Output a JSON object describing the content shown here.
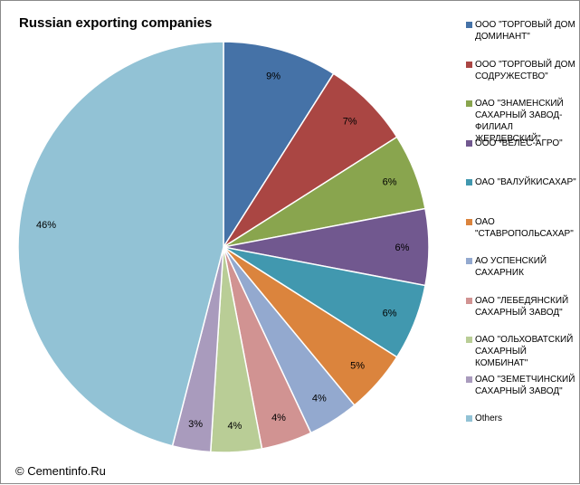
{
  "chart_data": {
    "type": "pie",
    "title": "Russian exporting companies",
    "source": "© Cementinfo.Ru",
    "legend_position": "right",
    "slices": [
      {
        "name": "ООО \"ТОРГОВЫЙ ДОМ ДОМИНАНТ\"",
        "value": 9,
        "label": "9%",
        "color": "#4572A7"
      },
      {
        "name": "ООО \"ТОРГОВЫЙ ДОМ СОДРУЖЕСТВО\"",
        "value": 7,
        "label": "7%",
        "color": "#AA4643"
      },
      {
        "name": "ОАО \"ЗНАМЕНСКИЙ САХАРНЫЙ ЗАВОД-ФИЛИАЛ ЖЕРДЕВСКИЙ\"",
        "value": 6,
        "label": "6%",
        "color": "#89A54E"
      },
      {
        "name": "ООО \"ВЕЛЕС-АГРО\"",
        "value": 6,
        "label": "6%",
        "color": "#71588F"
      },
      {
        "name": "ОАО \"ВАЛУЙКИСАХАР\"",
        "value": 6,
        "label": "6%",
        "color": "#4198AF"
      },
      {
        "name": "ОАО \"СТАВРОПОЛЬСАХАР\"",
        "value": 5,
        "label": "5%",
        "color": "#DB843D"
      },
      {
        "name": "АО УСПЕНСКИЙ САХАРНИК",
        "value": 4,
        "label": "4%",
        "color": "#93A9CF"
      },
      {
        "name": "ОАО \"ЛЕБЕДЯНСКИЙ САХАРНЫЙ ЗАВОД\"",
        "value": 4,
        "label": "4%",
        "color": "#D19392"
      },
      {
        "name": "ОАО \"ОЛЬХОВАТСКИЙ САХАРНЫЙ КОМБИНАТ\"",
        "value": 4,
        "label": "4%",
        "color": "#B9CD96"
      },
      {
        "name": "ОАО \"ЗЕМЕТЧИНСКИЙ САХАРНЫЙ ЗАВОД\"",
        "value": 3,
        "label": "3%",
        "color": "#A99BBD"
      },
      {
        "name": "Others",
        "value": 46,
        "label": "46%",
        "color": "#92C2D5"
      }
    ]
  }
}
